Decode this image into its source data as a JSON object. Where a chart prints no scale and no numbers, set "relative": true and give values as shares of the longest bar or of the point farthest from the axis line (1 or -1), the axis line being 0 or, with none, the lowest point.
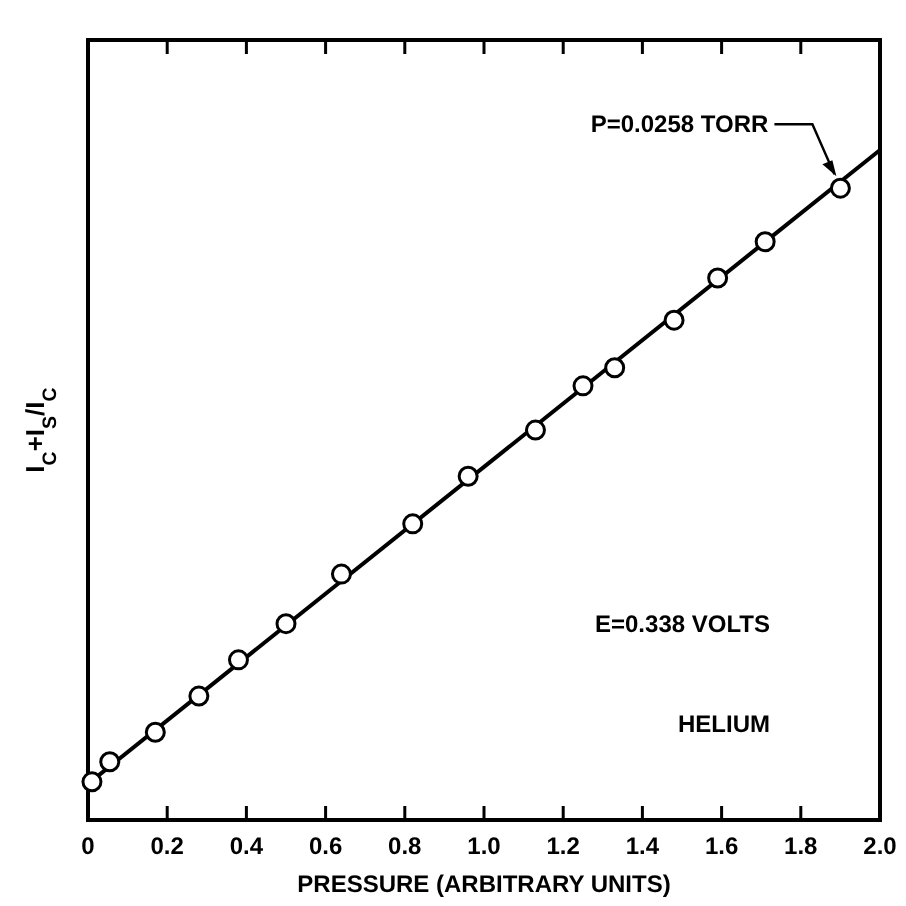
{
  "chart_data": {
    "type": "scatter",
    "relative": true,
    "xlabel": "PRESSURE (ARBITRARY UNITS)",
    "ylabel": "I$_{C}$+I$_{S}$/I$_{C}$",
    "xlim": [
      0,
      2
    ],
    "xticks": [
      0,
      0.2,
      0.4,
      0.6,
      0.8,
      {
        "value": 1,
        "label": "1.0"
      },
      1.2,
      1.4,
      1.6,
      1.8,
      {
        "value": 2,
        "label": "2.0"
      }
    ],
    "marker": "circle",
    "grid": false,
    "series": [
      {
        "color": "#000000",
        "x": [
          0.01,
          0.055,
          0.17,
          0.28,
          0.38,
          0.5,
          0.64,
          0.82,
          0.96,
          1.13,
          1.25,
          1.33,
          1.48,
          1.59,
          1.71,
          1.9
        ],
        "values": [
          0.057,
          0.087,
          0.131,
          0.185,
          0.239,
          0.293,
          0.367,
          0.442,
          0.513,
          0.582,
          0.648,
          0.675,
          0.746,
          0.809,
          0.863,
          0.943
        ]
      },
      {
        "type": "line",
        "color": "#000000",
        "marker": "none",
        "x": [
          0,
          2
        ],
        "values": [
          0.054,
          1
        ]
      }
    ],
    "annotations": [
      {
        "text": "P=0.0258 TORR",
        "x": 1.9,
        "y": 0.943
      },
      "E=0.338 VOLTS",
      "HELIUM"
    ]
  }
}
